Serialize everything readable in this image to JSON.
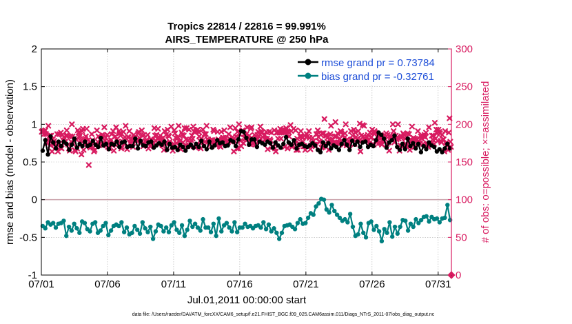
{
  "colors": {
    "rmse": "#000000",
    "bias": "#008080",
    "obs": "#d81b60",
    "legend_text": "#1f4fd8",
    "zero_line": "#c8a0a8",
    "grid": "#b0b0b0"
  },
  "chart_data": {
    "type": "line",
    "title": "Tropics 22814 / 22816 = 99.991%",
    "subtitle": "AIRS_TEMPERATURE @ 250 hPa",
    "xlabel": "Jul.01,2011 00:00:00 start",
    "ylabel_left": "rmse and bias (model - observation)",
    "ylabel_right": "# of obs: o=possible; ×=assimilated",
    "xlim": [
      1,
      32
    ],
    "ylim_left": [
      -1,
      2
    ],
    "ylim_right": [
      0,
      300
    ],
    "x_ticks": [
      1,
      6,
      11,
      16,
      21,
      26,
      31
    ],
    "x_tick_labels": [
      "07/01",
      "07/06",
      "07/11",
      "07/16",
      "07/21",
      "07/26",
      "07/31"
    ],
    "y_ticks_left": [
      -1,
      -0.5,
      0,
      0.5,
      1,
      1.5,
      2
    ],
    "y_tick_labels_left": [
      "-1",
      "-0.5",
      "0",
      "0.5",
      "1",
      "1.5",
      "2"
    ],
    "y_ticks_right": [
      0,
      50,
      100,
      150,
      200,
      250,
      300
    ],
    "y_tick_labels_right": [
      "0",
      "50",
      "100",
      "150",
      "200",
      "250",
      "300"
    ],
    "grid": true,
    "legend_position": "top-right",
    "series": [
      {
        "name": "rmse grand pr = 0.73784",
        "axis": "left",
        "values": [
          0.65,
          0.79,
          0.6,
          0.84,
          0.76,
          0.68,
          0.77,
          0.71,
          0.77,
          0.74,
          0.66,
          0.73,
          0.81,
          0.69,
          0.74,
          0.71,
          0.77,
          0.71,
          0.73,
          0.78,
          0.73,
          0.7,
          0.82,
          0.72,
          0.74,
          0.67,
          0.74,
          0.73,
          0.77,
          0.7,
          0.76,
          0.77,
          0.7,
          0.71,
          0.71,
          0.81,
          0.68,
          0.78,
          0.72,
          0.71,
          0.76,
          0.77,
          0.69,
          0.72,
          0.75,
          0.73,
          0.77,
          0.66,
          0.74,
          0.69,
          0.7,
          0.66,
          0.73,
          0.7,
          0.65,
          0.7,
          0.73,
          0.69,
          0.74,
          0.7,
          0.78,
          0.71,
          0.67,
          0.77,
          0.69,
          0.72,
          0.79,
          0.75,
          0.76,
          0.71,
          0.72,
          0.79,
          0.77,
          0.71,
          0.8,
          0.91,
          0.9,
          0.82,
          0.73,
          0.8,
          0.8,
          0.7,
          0.77,
          0.75,
          0.73,
          0.77,
          0.75,
          0.69,
          0.76,
          0.72,
          0.69,
          0.74,
          0.83,
          0.76,
          0.73,
          0.79,
          0.68,
          0.73,
          0.74,
          0.71,
          0.7,
          0.72,
          0.75,
          0.72,
          0.66,
          0.63,
          0.76,
          0.71,
          0.75,
          0.68,
          0.72,
          0.7,
          0.66,
          0.74,
          0.79,
          0.73,
          0.66,
          0.78,
          0.73,
          0.77,
          0.7,
          0.76,
          0.77,
          0.7,
          0.73,
          0.71,
          0.79,
          0.89,
          0.86,
          0.81,
          0.69,
          0.76,
          0.79,
          0.85,
          0.7,
          0.66,
          0.74,
          0.67,
          0.81,
          0.71,
          0.75,
          0.68,
          0.74,
          0.63,
          0.71,
          0.67,
          0.76,
          0.72,
          0.7,
          0.64,
          0.67,
          0.63,
          0.68,
          0.74,
          0.68
        ]
      },
      {
        "name": "bias grand pr = -0.32761",
        "axis": "left",
        "values": [
          -0.35,
          -0.38,
          -0.3,
          -0.33,
          -0.31,
          -0.37,
          -0.32,
          -0.31,
          -0.28,
          -0.48,
          -0.36,
          -0.41,
          -0.32,
          -0.38,
          -0.44,
          -0.29,
          -0.31,
          -0.39,
          -0.42,
          -0.32,
          -0.3,
          -0.44,
          -0.41,
          -0.35,
          -0.31,
          -0.47,
          -0.41,
          -0.35,
          -0.33,
          -0.35,
          -0.3,
          -0.43,
          -0.37,
          -0.46,
          -0.44,
          -0.35,
          -0.4,
          -0.45,
          -0.3,
          -0.38,
          -0.43,
          -0.36,
          -0.52,
          -0.42,
          -0.33,
          -0.35,
          -0.42,
          -0.37,
          -0.43,
          -0.34,
          -0.3,
          -0.4,
          -0.44,
          -0.34,
          -0.48,
          -0.4,
          -0.28,
          -0.36,
          -0.32,
          -0.37,
          -0.41,
          -0.26,
          -0.37,
          -0.37,
          -0.43,
          -0.32,
          -0.48,
          -0.25,
          -0.42,
          -0.34,
          -0.31,
          -0.37,
          -0.42,
          -0.3,
          -0.43,
          -0.37,
          -0.37,
          -0.32,
          -0.36,
          -0.35,
          -0.38,
          -0.35,
          -0.34,
          -0.37,
          -0.3,
          -0.39,
          -0.33,
          -0.42,
          -0.38,
          -0.44,
          -0.52,
          -0.44,
          -0.35,
          -0.34,
          -0.33,
          -0.36,
          -0.39,
          -0.31,
          -0.26,
          -0.32,
          -0.31,
          -0.24,
          -0.18,
          -0.2,
          -0.09,
          -0.05,
          0.01,
          0.0,
          -0.13,
          -0.17,
          -0.07,
          -0.15,
          -0.2,
          -0.24,
          -0.28,
          -0.26,
          -0.3,
          -0.19,
          -0.36,
          -0.48,
          -0.46,
          -0.32,
          -0.44,
          -0.5,
          -0.31,
          -0.29,
          -0.4,
          -0.35,
          -0.42,
          -0.55,
          -0.39,
          -0.44,
          -0.3,
          -0.49,
          -0.36,
          -0.45,
          -0.36,
          -0.27,
          -0.28,
          -0.41,
          -0.32,
          -0.36,
          -0.26,
          -0.31,
          -0.27,
          -0.23,
          -0.22,
          -0.29,
          -0.23,
          -0.26,
          -0.25,
          -0.3,
          -0.25,
          -0.24,
          -0.07,
          -0.27
        ]
      },
      {
        "name": "# of obs",
        "axis": "right",
        "marker": "x",
        "values": [
          190,
          191,
          190,
          187,
          191,
          192,
          187,
          175,
          179,
          198,
          178,
          185,
          172,
          185,
          164,
          180,
          175,
          178,
          174,
          171,
          170,
          187,
          164,
          174,
          187,
          169,
          189,
          168,
          186,
          179,
          183,
          175,
          177,
          185,
          192,
          185,
          173,
          168,
          165,
          184,
          177,
          200,
          184,
          174,
          181,
          166,
          164,
          180,
          168,
          192,
          189,
          183,
          185,
          178,
          160,
          191,
          194,
          166,
          174,
          181,
          184,
          194,
          174,
          179,
          146,
          171,
          169,
          176,
          187,
          179,
          169,
          164,
          166,
          172,
          173,
          192,
          177,
          184,
          172,
          174,
          179,
          174,
          186,
          182,
          185,
          196,
          178,
          182,
          172,
          186,
          170,
          178,
          168,
          176,
          179,
          187,
          172,
          191,
          165,
          174,
          184,
          196,
          180,
          177,
          174,
          191,
          188,
          185,
          168,
          170,
          177,
          190,
          174,
          183,
          198,
          181,
          167,
          183,
          183,
          191,
          175,
          179,
          181,
          176,
          170,
          186,
          183,
          182,
          179,
          178,
          180,
          188,
          190,
          182,
          175,
          177,
          192,
          185,
          171,
          186,
          174,
          178,
          176,
          179,
          186,
          168,
          178,
          171,
          180,
          172,
          179,
          175,
          175,
          195,
          185,
          178,
          186,
          181,
          194,
          173,
          182,
          185,
          178,
          181,
          172,
          182,
          166,
          191,
          175,
          186,
          175,
          193,
          185,
          184,
          177,
          173,
          197,
          170,
          165,
          174,
          192,
          188,
          182,
          175,
          181,
          183,
          198,
          172,
          178,
          167,
          189,
          186,
          176,
          185,
          195,
          172,
          180,
          195,
          171,
          179,
          193,
          171,
          176,
          179,
          185,
          181,
          197,
          190,
          190,
          169,
          191,
          172,
          193,
          190,
          184,
          178,
          168,
          181,
          178,
          193,
          171,
          187,
          177,
          187,
          198,
          180,
          180,
          178,
          178,
          173,
          179,
          171,
          179,
          193,
          191,
          177,
          173,
          174,
          177,
          190,
          180,
          179,
          171,
          170,
          190,
          180,
          182,
          182,
          192,
          178,
          182,
          176,
          177,
          176,
          187,
          181,
          196,
          177,
          178,
          183,
          178,
          164,
          178,
          195,
          184,
          168,
          190,
          168,
          200,
          187,
          178,
          171,
          191,
          192,
          175,
          187,
          181,
          181,
          187,
          196,
          180,
          181,
          185,
          174,
          194,
          196,
          178,
          174,
          176,
          186,
          173,
          181,
          179,
          186,
          190,
          184,
          177,
          197,
          191,
          189,
          183,
          176,
          185,
          186,
          181,
          190,
          181,
          167,
          177,
          190,
          180,
          178,
          189,
          170,
          171,
          170,
          192,
          168,
          164,
          189,
          189,
          181,
          190,
          189,
          194,
          181,
          189,
          192,
          193,
          189,
          170,
          192,
          195,
          190,
          168,
          190,
          184,
          172,
          199,
          191,
          170,
          172,
          194,
          178,
          175,
          192,
          166,
          181,
          166,
          174,
          174,
          184,
          191,
          184,
          182,
          177,
          171,
          171,
          166,
          183,
          187,
          184,
          170,
          191,
          182,
          167,
          172,
          175,
          182,
          178,
          173,
          173,
          171,
          187,
          187,
          192,
          183,
          177,
          177,
          186,
          169,
          188,
          170,
          188,
          207,
          185,
          170,
          185,
          177,
          183,
          166,
          179,
          187,
          198,
          176,
          180,
          175,
          176,
          184,
          203,
          184,
          175,
          188,
          176,
          175,
          181,
          191,
          190,
          175,
          186,
          173,
          182,
          188,
          200,
          172,
          180,
          174,
          178,
          172,
          174,
          191,
          178,
          185,
          180,
          193,
          174,
          189,
          183,
          180,
          181,
          191,
          178,
          201,
          164,
          185,
          178,
          199,
          184,
          198,
          179,
          180,
          178,
          183,
          186,
          179,
          175,
          189,
          182,
          183,
          193,
          189,
          173,
          191,
          189,
          178,
          176,
          183,
          185,
          175,
          181,
          183,
          175,
          173,
          183,
          179,
          178,
          186,
          180,
          188,
          174,
          186,
          176,
          165,
          185,
          183,
          181,
          179,
          200,
          191,
          176,
          181,
          185,
          180,
          183,
          200,
          181,
          165,
          172,
          182,
          184,
          171,
          188,
          186,
          172,
          181,
          174,
          172,
          188,
          178,
          187,
          166,
          180,
          178,
          197,
          173,
          182,
          170,
          181,
          178,
          180,
          175,
          191,
          178,
          175,
          174,
          184,
          181,
          185,
          174,
          184,
          186,
          183,
          189,
          175,
          172,
          170,
          196,
          175,
          173,
          174,
          185,
          180,
          185,
          174,
          202,
          181,
          193,
          188,
          178,
          193,
          190,
          188,
          178,
          176,
          186,
          180,
          180,
          164,
          191,
          175,
          172,
          172,
          166,
          189,
          208,
          177,
          170
        ]
      }
    ],
    "x_markers_right_axis": [
      {
        "x": 32,
        "y": 0,
        "marker": "diamond"
      }
    ]
  },
  "footer": "data file: /Users/raeder/DAI/ATM_forcXX/CAM6_setup/f.e21.FHIST_BGC.f09_025.CAM6assim.011/Diags_NTrS_2011-07/obs_diag_output.nc"
}
